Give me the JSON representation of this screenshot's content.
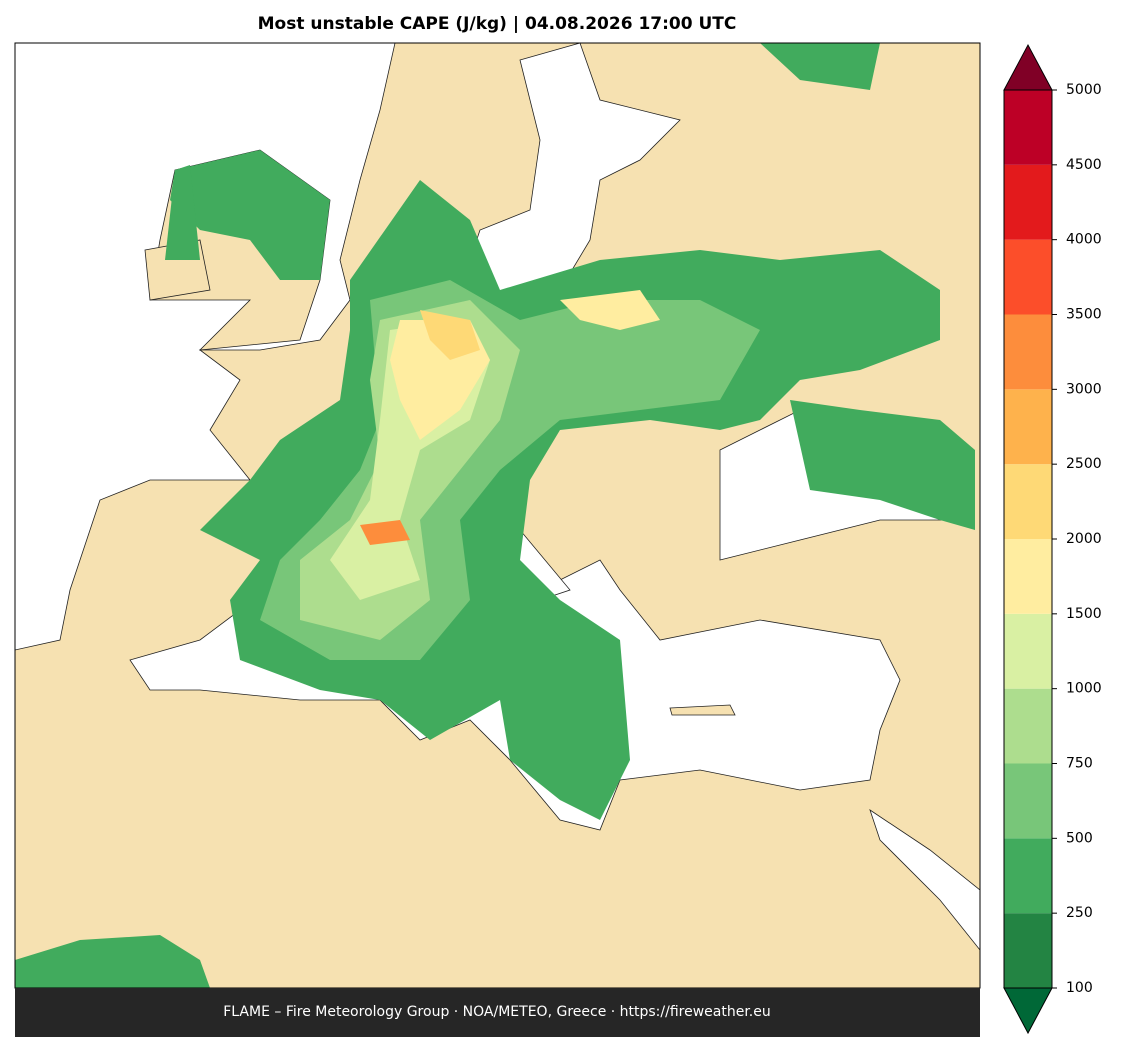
{
  "title": "Most unstable CAPE (J/kg)  |  04.08.2026 17:00 UTC",
  "footer": "FLAME – Fire Meteorology Group · NOA/METEO, Greece · https://fireweather.eu",
  "colorbar": {
    "levels": [
      100,
      250,
      500,
      750,
      1000,
      1500,
      2000,
      2500,
      3000,
      3500,
      4000,
      4500,
      5000
    ],
    "colors": [
      "#238443",
      "#41ab5d",
      "#78c679",
      "#addd8e",
      "#d9f0a3",
      "#ffeda0",
      "#fed976",
      "#feb24c",
      "#fd8d3c",
      "#fc4e2a",
      "#e31a1c",
      "#bd0026"
    ],
    "extend_below_color": "#006837",
    "extend_above_color": "#800026"
  }
}
